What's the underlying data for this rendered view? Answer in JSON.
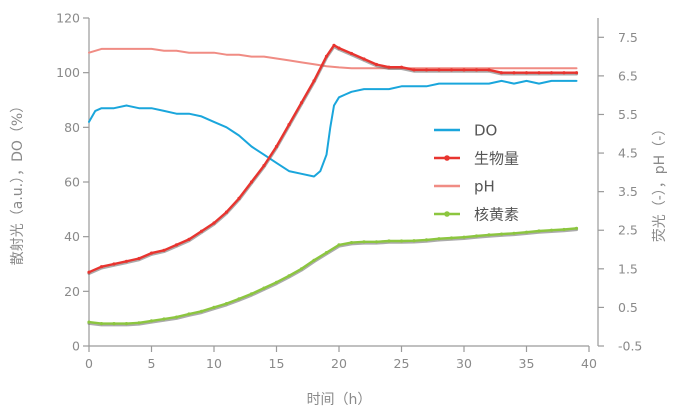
{
  "chart_data": {
    "type": "line",
    "title": "",
    "xlabel": "时间（h）",
    "ylabel_left": "散射光（a.u.），DO（%）",
    "ylabel_right": "荧光（-），pH（-）",
    "x_range": [
      0,
      40
    ],
    "x_ticks": [
      0,
      5,
      10,
      15,
      20,
      25,
      30,
      35,
      40
    ],
    "y_left_range": [
      0,
      120
    ],
    "y_left_ticks": [
      0,
      20,
      40,
      60,
      80,
      100,
      120
    ],
    "y_right_range": [
      -0.5,
      8.0
    ],
    "y_right_ticks": [
      -0.5,
      0.5,
      1.5,
      2.5,
      3.5,
      4.5,
      5.5,
      6.5,
      7.5
    ],
    "grid": false,
    "legend_position": "right-center",
    "series": [
      {
        "name": "DO",
        "axis": "left",
        "color": "#1aa6dc",
        "marker": "none",
        "x": [
          0,
          0.5,
          1,
          2,
          3,
          4,
          5,
          6,
          7,
          8,
          9,
          10,
          11,
          12,
          13,
          14,
          15,
          16,
          17,
          18,
          18.5,
          19,
          19.3,
          19.6,
          20,
          20.5,
          21,
          22,
          23,
          24,
          25,
          26,
          27,
          28,
          29,
          30,
          31,
          32,
          33,
          34,
          35,
          36,
          37,
          38,
          39
        ],
        "y": [
          82,
          86,
          87,
          87,
          88,
          87,
          87,
          86,
          85,
          85,
          84,
          82,
          80,
          77,
          73,
          70,
          67,
          64,
          63,
          62,
          64,
          70,
          80,
          88,
          91,
          92,
          93,
          94,
          94,
          94,
          95,
          95,
          95,
          96,
          96,
          96,
          96,
          96,
          97,
          96,
          97,
          96,
          97,
          97,
          97
        ]
      },
      {
        "name": "生物量",
        "axis": "left",
        "color": "#e8342f",
        "marker": "dot",
        "x": [
          0,
          1,
          2,
          3,
          4,
          5,
          6,
          7,
          8,
          9,
          10,
          11,
          12,
          13,
          14,
          15,
          16,
          17,
          18,
          19,
          19.6,
          20,
          21,
          22,
          23,
          24,
          25,
          26,
          27,
          28,
          29,
          30,
          31,
          32,
          33,
          34,
          35,
          36,
          37,
          38,
          39
        ],
        "y": [
          27,
          29,
          30,
          31,
          32,
          34,
          35,
          37,
          39,
          42,
          45,
          49,
          54,
          60,
          66,
          73,
          81,
          89,
          97,
          106,
          110,
          109,
          107,
          105,
          103,
          102,
          102,
          101,
          101,
          101,
          101,
          101,
          101,
          101,
          100,
          100,
          100,
          100,
          100,
          100,
          100
        ]
      },
      {
        "name": "pH",
        "axis": "right",
        "color": "#f08c84",
        "marker": "none",
        "x": [
          0,
          1,
          2,
          3,
          4,
          5,
          6,
          7,
          8,
          9,
          10,
          11,
          12,
          13,
          14,
          15,
          16,
          17,
          18,
          19,
          20,
          21,
          22,
          23,
          24,
          25,
          26,
          27,
          28,
          29,
          30,
          31,
          32,
          33,
          34,
          35,
          36,
          37,
          38,
          39
        ],
        "y": [
          7.1,
          7.2,
          7.2,
          7.2,
          7.2,
          7.2,
          7.15,
          7.15,
          7.1,
          7.1,
          7.1,
          7.05,
          7.05,
          7.0,
          7.0,
          6.95,
          6.9,
          6.85,
          6.8,
          6.75,
          6.72,
          6.7,
          6.7,
          6.7,
          6.7,
          6.7,
          6.7,
          6.7,
          6.7,
          6.7,
          6.7,
          6.7,
          6.7,
          6.7,
          6.7,
          6.7,
          6.7,
          6.7,
          6.7,
          6.7
        ]
      },
      {
        "name": "核黄素",
        "axis": "right",
        "color": "#8cc63f",
        "marker": "dot",
        "x": [
          0,
          1,
          2,
          3,
          4,
          5,
          6,
          7,
          8,
          9,
          10,
          11,
          12,
          13,
          14,
          15,
          16,
          17,
          18,
          19,
          20,
          21,
          22,
          23,
          24,
          25,
          26,
          27,
          28,
          29,
          30,
          31,
          32,
          33,
          34,
          35,
          36,
          37,
          38,
          39
        ],
        "y": [
          0.12,
          0.08,
          0.08,
          0.08,
          0.1,
          0.15,
          0.2,
          0.25,
          0.33,
          0.4,
          0.5,
          0.6,
          0.72,
          0.85,
          1.0,
          1.15,
          1.32,
          1.5,
          1.72,
          1.92,
          2.12,
          2.18,
          2.2,
          2.2,
          2.22,
          2.22,
          2.23,
          2.25,
          2.28,
          2.3,
          2.32,
          2.35,
          2.38,
          2.4,
          2.42,
          2.45,
          2.48,
          2.5,
          2.52,
          2.55
        ]
      }
    ]
  }
}
